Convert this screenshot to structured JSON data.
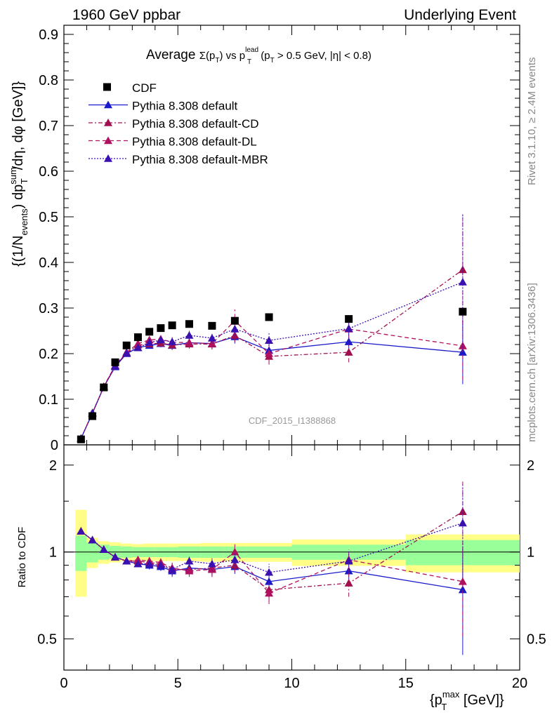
{
  "header": {
    "left": "1960 GeV ppbar",
    "right": "Underlying Event"
  },
  "side_labels": {
    "rivet": "Rivet 3.1.10, ≥ 2.4M events",
    "mcplots": "mcplots.cern.ch [arXiv:1306.3436]"
  },
  "watermark": "CDF_2015_I1388868",
  "colors": {
    "data": "#000000",
    "default": "#1a1acc",
    "cd": "#a0104f",
    "dl": "#b0105e",
    "mbr": "#3a10b0",
    "band_inner": "#99ff99",
    "band_outer": "#ffff88"
  },
  "chart_data": [
    {
      "type": "scatter",
      "panel": "main",
      "title": "Average Σ(p_T) vs p_T^lead (p_T > 0.5 GeV, |η| < 0.8)",
      "title_parts": {
        "a": "Average ",
        "b": "Σ(p",
        "c": "T",
        "d": ") vs p",
        "e": "lead",
        "f": "T",
        "g": " (p",
        "h": "T",
        "i": " > 0.5 GeV, |η| < 0.8)"
      },
      "ylabel": "{(1/N_events) dp_T^sum/dη, dφ [GeV]}",
      "ylabel_parts": {
        "a": "{(1/N",
        "b": "events",
        "c": ") dp",
        "d": "sum",
        "e": "T",
        "f": "/dη, dφ [GeV]}"
      },
      "xlim": [
        0,
        20
      ],
      "ylim": [
        0,
        0.92
      ],
      "yticks": [
        0,
        0.1,
        0.2,
        0.3,
        0.4,
        0.5,
        0.6,
        0.7,
        0.8,
        0.9
      ],
      "ytick_labels": [
        "0",
        "0.1",
        "0.2",
        "0.3",
        "0.4",
        "0.5",
        "0.6",
        "0.7",
        "0.8",
        "0.9"
      ],
      "legend_position": "top-left",
      "data_series": {
        "name": "CDF",
        "x": [
          0.75,
          1.25,
          1.75,
          2.25,
          2.75,
          3.25,
          3.75,
          4.25,
          4.75,
          5.5,
          6.5,
          7.5,
          9.0,
          12.5,
          17.5
        ],
        "y": [
          0.012,
          0.063,
          0.126,
          0.181,
          0.218,
          0.236,
          0.248,
          0.256,
          0.262,
          0.265,
          0.261,
          0.272,
          0.28,
          0.276,
          0.292
        ]
      },
      "series": [
        {
          "name": "Pythia 8.308 default",
          "style": "solid",
          "x": [
            0.75,
            1.25,
            1.75,
            2.25,
            2.75,
            3.25,
            3.75,
            4.25,
            4.75,
            5.5,
            6.5,
            7.5,
            9.0,
            12.5,
            17.5
          ],
          "y": [
            0.014,
            0.069,
            0.127,
            0.171,
            0.2,
            0.213,
            0.218,
            0.222,
            0.218,
            0.224,
            0.222,
            0.237,
            0.207,
            0.226,
            0.203
          ],
          "err": [
            0.001,
            0.002,
            0.003,
            0.004,
            0.005,
            0.006,
            0.007,
            0.008,
            0.01,
            0.01,
            0.012,
            0.015,
            0.018,
            0.022,
            0.07
          ]
        },
        {
          "name": "Pythia 8.308 default-CD",
          "style": "dashdot",
          "x": [
            0.75,
            1.25,
            1.75,
            2.25,
            2.75,
            3.25,
            3.75,
            4.25,
            4.75,
            5.5,
            6.5,
            7.5,
            9.0,
            12.5,
            17.5
          ],
          "y": [
            0.014,
            0.07,
            0.127,
            0.173,
            0.201,
            0.219,
            0.221,
            0.223,
            0.219,
            0.221,
            0.221,
            0.24,
            0.194,
            0.203,
            0.384
          ],
          "err": [
            0.001,
            0.002,
            0.003,
            0.004,
            0.005,
            0.006,
            0.007,
            0.008,
            0.01,
            0.01,
            0.012,
            0.015,
            0.018,
            0.022,
            0.12
          ]
        },
        {
          "name": "Pythia 8.308 default-DL",
          "style": "dashed",
          "x": [
            0.75,
            1.25,
            1.75,
            2.25,
            2.75,
            3.25,
            3.75,
            4.25,
            4.75,
            5.5,
            6.5,
            7.5,
            9.0,
            12.5,
            17.5
          ],
          "y": [
            0.014,
            0.07,
            0.128,
            0.174,
            0.203,
            0.222,
            0.23,
            0.232,
            0.225,
            0.224,
            0.222,
            0.272,
            0.2,
            0.254,
            0.217
          ],
          "err": [
            0.001,
            0.002,
            0.003,
            0.004,
            0.005,
            0.006,
            0.007,
            0.008,
            0.01,
            0.01,
            0.012,
            0.025,
            0.018,
            0.022,
            0.075
          ]
        },
        {
          "name": "Pythia 8.308 default-MBR",
          "style": "dotted",
          "x": [
            0.75,
            1.25,
            1.75,
            2.25,
            2.75,
            3.25,
            3.75,
            4.25,
            4.75,
            5.5,
            6.5,
            7.5,
            9.0,
            12.5,
            17.5
          ],
          "y": [
            0.014,
            0.07,
            0.127,
            0.173,
            0.201,
            0.213,
            0.224,
            0.23,
            0.226,
            0.24,
            0.234,
            0.254,
            0.229,
            0.255,
            0.357
          ],
          "err": [
            0.001,
            0.002,
            0.003,
            0.004,
            0.005,
            0.006,
            0.007,
            0.008,
            0.01,
            0.01,
            0.012,
            0.015,
            0.018,
            0.022,
            0.15
          ]
        }
      ]
    },
    {
      "type": "scatter",
      "panel": "ratio",
      "ylabel": "Ratio to CDF",
      "xlabel": "{p_T^max [GeV]}",
      "xlabel_parts": {
        "a": "{p",
        "b": "max",
        "c": "T",
        "d": " [GeV]}"
      },
      "xlim": [
        0,
        20
      ],
      "ylim": [
        0.39,
        2.35
      ],
      "log_scale_y": true,
      "xticks": [
        0,
        5,
        10,
        15,
        20
      ],
      "xtick_labels": [
        "0",
        "5",
        "10",
        "15",
        "20"
      ],
      "yticks": [
        0.5,
        1,
        2
      ],
      "ytick_labels": [
        "0.5",
        "1",
        "2"
      ],
      "reference_line": 1,
      "uncertainty_bands": [
        {
          "x0": 0.5,
          "x1": 1.0,
          "inner": [
            0.86,
            1.14
          ],
          "outer": [
            0.7,
            1.4
          ]
        },
        {
          "x0": 1.0,
          "x1": 1.5,
          "inner": [
            0.92,
            1.08
          ],
          "outer": [
            0.88,
            1.12
          ]
        },
        {
          "x0": 1.5,
          "x1": 2.0,
          "inner": [
            0.94,
            1.06
          ],
          "outer": [
            0.91,
            1.09
          ]
        },
        {
          "x0": 2.0,
          "x1": 2.5,
          "inner": [
            0.95,
            1.05
          ],
          "outer": [
            0.92,
            1.08
          ]
        },
        {
          "x0": 2.5,
          "x1": 3.0,
          "inner": [
            0.955,
            1.045
          ],
          "outer": [
            0.93,
            1.07
          ]
        },
        {
          "x0": 3.0,
          "x1": 3.5,
          "inner": [
            0.96,
            1.04
          ],
          "outer": [
            0.935,
            1.065
          ]
        },
        {
          "x0": 3.5,
          "x1": 4.0,
          "inner": [
            0.96,
            1.04
          ],
          "outer": [
            0.93,
            1.07
          ]
        },
        {
          "x0": 4.0,
          "x1": 4.5,
          "inner": [
            0.96,
            1.04
          ],
          "outer": [
            0.93,
            1.07
          ]
        },
        {
          "x0": 4.5,
          "x1": 5.0,
          "inner": [
            0.96,
            1.04
          ],
          "outer": [
            0.93,
            1.07
          ]
        },
        {
          "x0": 5.0,
          "x1": 6.0,
          "inner": [
            0.955,
            1.045
          ],
          "outer": [
            0.93,
            1.07
          ]
        },
        {
          "x0": 6.0,
          "x1": 7.0,
          "inner": [
            0.955,
            1.045
          ],
          "outer": [
            0.925,
            1.075
          ]
        },
        {
          "x0": 7.0,
          "x1": 8.0,
          "inner": [
            0.955,
            1.045
          ],
          "outer": [
            0.925,
            1.075
          ]
        },
        {
          "x0": 8.0,
          "x1": 10.0,
          "inner": [
            0.955,
            1.045
          ],
          "outer": [
            0.925,
            1.075
          ]
        },
        {
          "x0": 10.0,
          "x1": 15.0,
          "inner": [
            0.94,
            1.06
          ],
          "outer": [
            0.895,
            1.105
          ]
        },
        {
          "x0": 15.0,
          "x1": 20.0,
          "inner": [
            0.9,
            1.1
          ],
          "outer": [
            0.85,
            1.15
          ]
        }
      ],
      "series": [
        {
          "name": "Pythia 8.308 default",
          "x": [
            0.75,
            1.25,
            1.75,
            2.25,
            2.75,
            3.25,
            3.75,
            4.25,
            4.75,
            5.5,
            6.5,
            7.5,
            9.0,
            12.5,
            17.5
          ],
          "y": [
            1.18,
            1.1,
            1.02,
            0.96,
            0.93,
            0.91,
            0.9,
            0.89,
            0.86,
            0.88,
            0.87,
            0.89,
            0.79,
            0.86,
            0.74
          ],
          "err": [
            0.02,
            0.02,
            0.02,
            0.02,
            0.02,
            0.02,
            0.03,
            0.03,
            0.04,
            0.04,
            0.05,
            0.05,
            0.06,
            0.08,
            0.3
          ]
        },
        {
          "name": "Pythia 8.308 default-CD",
          "x": [
            0.75,
            1.25,
            1.75,
            2.25,
            2.75,
            3.25,
            3.75,
            4.25,
            4.75,
            5.5,
            6.5,
            7.5,
            9.0,
            12.5,
            17.5
          ],
          "y": [
            1.18,
            1.1,
            1.02,
            0.96,
            0.93,
            0.93,
            0.92,
            0.91,
            0.87,
            0.87,
            0.88,
            0.9,
            0.74,
            0.78,
            1.38
          ],
          "err": [
            0.02,
            0.02,
            0.02,
            0.02,
            0.02,
            0.02,
            0.03,
            0.03,
            0.04,
            0.04,
            0.05,
            0.05,
            0.06,
            0.08,
            0.4
          ]
        },
        {
          "name": "Pythia 8.308 default-DL",
          "x": [
            0.75,
            1.25,
            1.75,
            2.25,
            2.75,
            3.25,
            3.75,
            4.25,
            4.75,
            5.5,
            6.5,
            7.5,
            9.0,
            12.5,
            17.5
          ],
          "y": [
            1.18,
            1.1,
            1.02,
            0.96,
            0.93,
            0.94,
            0.93,
            0.92,
            0.88,
            0.86,
            0.87,
            1.0,
            0.72,
            0.94,
            0.79
          ],
          "err": [
            0.02,
            0.02,
            0.02,
            0.02,
            0.02,
            0.02,
            0.03,
            0.03,
            0.04,
            0.04,
            0.05,
            0.08,
            0.06,
            0.08,
            0.28
          ]
        },
        {
          "name": "Pythia 8.308 default-MBR",
          "x": [
            0.75,
            1.25,
            1.75,
            2.25,
            2.75,
            3.25,
            3.75,
            4.25,
            4.75,
            5.5,
            6.5,
            7.5,
            9.0,
            12.5,
            17.5
          ],
          "y": [
            1.18,
            1.1,
            1.02,
            0.96,
            0.93,
            0.91,
            0.91,
            0.9,
            0.87,
            0.93,
            0.91,
            0.94,
            0.85,
            0.93,
            1.26
          ],
          "err": [
            0.02,
            0.02,
            0.02,
            0.02,
            0.02,
            0.02,
            0.03,
            0.03,
            0.04,
            0.04,
            0.05,
            0.05,
            0.06,
            0.08,
            0.45
          ]
        }
      ]
    }
  ]
}
